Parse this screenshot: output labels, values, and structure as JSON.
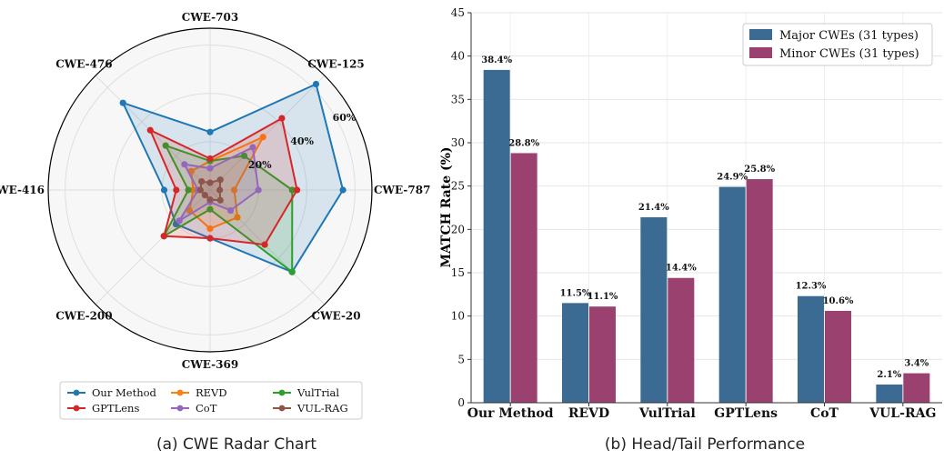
{
  "chart_data": [
    {
      "type": "radar",
      "caption": "(a) CWE Radar Chart",
      "axes": [
        "CWE-703",
        "CWE-125",
        "CWE-787",
        "CWE-20",
        "CWE-369",
        "CWE-200",
        "CWE-416",
        "CWE-476"
      ],
      "radial_tick_labels": [
        "20%",
        "40%",
        "60%"
      ],
      "radial_ticks": [
        20,
        40,
        60
      ],
      "rmax": 67,
      "series": [
        {
          "name": "Our Method",
          "color": "#1f77b4",
          "values": [
            24,
            62,
            55,
            48,
            20,
            20,
            19,
            51
          ]
        },
        {
          "name": "REVD",
          "color": "#ff7f0e",
          "values": [
            12,
            31,
            10,
            16,
            16,
            12,
            7,
            11
          ]
        },
        {
          "name": "VulTrial",
          "color": "#2ca02c",
          "values": [
            12,
            20,
            34,
            48,
            8,
            27,
            9,
            26
          ]
        },
        {
          "name": "GPTLens",
          "color": "#d62728",
          "values": [
            13,
            42,
            36,
            32,
            20,
            27,
            14,
            35
          ]
        },
        {
          "name": "CoT",
          "color": "#9467bd",
          "values": [
            9,
            25,
            20,
            12,
            5,
            18,
            5,
            15
          ]
        },
        {
          "name": "VUL-RAG",
          "color": "#8c564b",
          "values": [
            3,
            6,
            4,
            6,
            4,
            3,
            4,
            5
          ]
        }
      ],
      "legend": {
        "position": "bottom",
        "columns": 3
      }
    },
    {
      "type": "bar",
      "caption": "(b) Head/Tail Performance",
      "categories": [
        "Our Method",
        "REVD",
        "VulTrial",
        "GPTLens",
        "CoT",
        "VUL-RAG"
      ],
      "series": [
        {
          "name": "Major CWEs (31 types)",
          "color": "#3b6a93",
          "values": [
            38.4,
            11.5,
            21.4,
            24.9,
            12.3,
            2.1
          ],
          "labels": [
            "38.4%",
            "11.5%",
            "21.4%",
            "24.9%",
            "12.3%",
            "2.1%"
          ]
        },
        {
          "name": "Minor CWEs (31 types)",
          "color": "#9b4170",
          "values": [
            28.8,
            11.1,
            14.4,
            25.8,
            10.6,
            3.4
          ],
          "labels": [
            "28.8%",
            "11.1%",
            "14.4%",
            "25.8%",
            "10.6%",
            "3.4%"
          ]
        }
      ],
      "ylabel": "MATCH Rate (%)",
      "ylim": [
        0,
        45
      ],
      "yticks": [
        "0",
        "5",
        "10",
        "15",
        "20",
        "25",
        "30",
        "35",
        "40",
        "45"
      ],
      "grid": true,
      "legend": {
        "position": "top-right"
      }
    }
  ]
}
